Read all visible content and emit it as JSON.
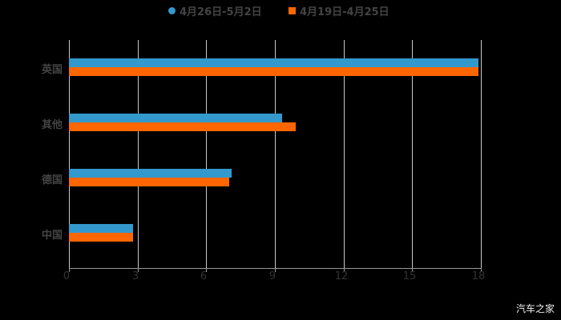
{
  "chart_data": {
    "type": "bar",
    "orientation": "horizontal",
    "title": "",
    "categories": [
      "英国",
      "其他",
      "德国",
      "中国"
    ],
    "series": [
      {
        "name": "4月26日-5月2日",
        "color": "#3399cc",
        "values": [
          17.9,
          9.3,
          7.1,
          2.8
        ]
      },
      {
        "name": "4月19日-4月25日",
        "color": "#ff6600",
        "values": [
          17.9,
          9.9,
          7.0,
          2.8
        ]
      }
    ],
    "xlabel": "",
    "ylabel": "",
    "xlim": [
      0,
      18
    ],
    "xticks": [
      "0",
      "3",
      "6",
      "9",
      "12",
      "15",
      "18"
    ],
    "grid": true,
    "legend_position": "top"
  },
  "legend": {
    "series1": "4月26日-5月2日",
    "series2": "4月19日-4月25日"
  },
  "watermark": "汽车之家"
}
